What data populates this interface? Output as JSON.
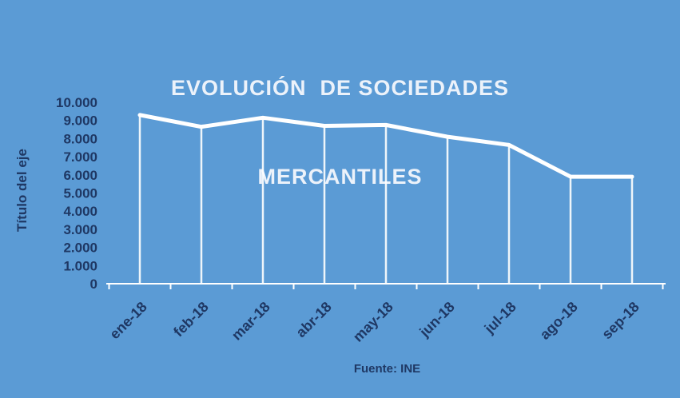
{
  "title": {
    "line1": "EVOLUCIÓN  DE SOCIEDADES",
    "line2": "MERCANTILES"
  },
  "y_axis_title": "Título del eje",
  "source": "Fuente: INE",
  "colors": {
    "background": "#5B9BD5",
    "line": "#FFFFFF",
    "drop_line": "#FFFFFF",
    "axis_line": "#FFFFFF",
    "title_text": "#ECF2FA",
    "axis_text": "#1F3864"
  },
  "chart_data": {
    "type": "line",
    "title": "EVOLUCIÓN DE SOCIEDADES MERCANTILES",
    "ylabel": "Título del eje",
    "xlabel": "",
    "categories": [
      "ene-18",
      "feb-18",
      "mar-18",
      "abr-18",
      "may-18",
      "jun-18",
      "jul-18",
      "ago-18",
      "sep-18"
    ],
    "values": [
      9300,
      8650,
      9150,
      8700,
      8750,
      8100,
      7650,
      5900,
      5900
    ],
    "ylim": [
      0,
      10000
    ],
    "ytick_step": 1000,
    "ytick_labels": [
      "0",
      "1.000",
      "2.000",
      "3.000",
      "4.000",
      "5.000",
      "6.000",
      "7.000",
      "8.000",
      "9.000",
      "10.000"
    ],
    "grid": false,
    "legend": false,
    "drop_lines": true,
    "source": "Fuente: INE"
  }
}
